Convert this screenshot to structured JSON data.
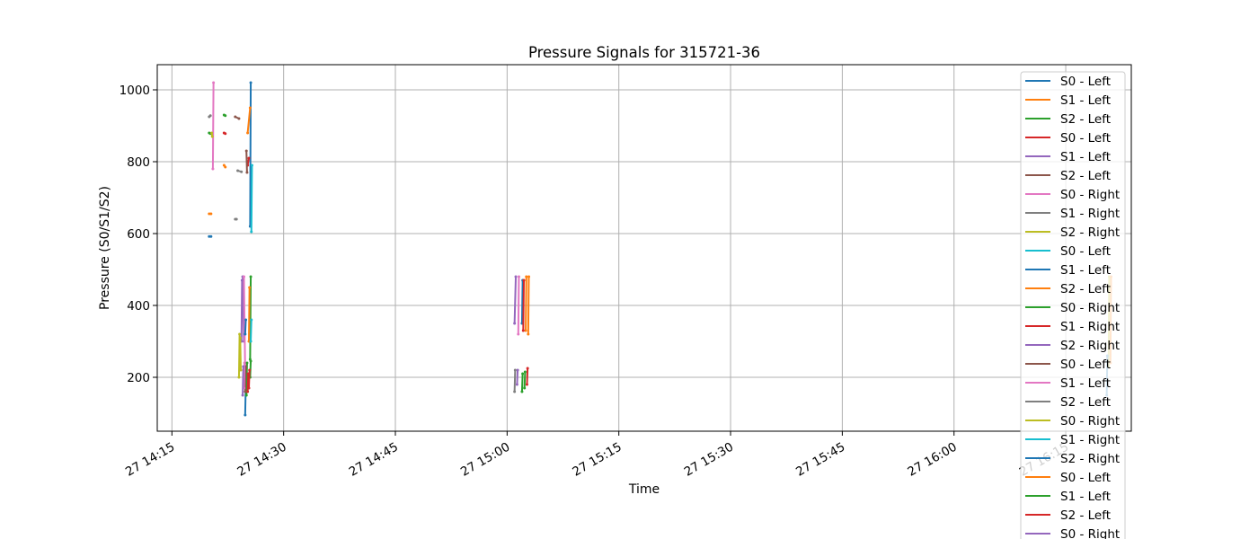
{
  "chart_data": {
    "type": "line",
    "title": "Pressure Signals for 315721-36",
    "xlabel": "Time",
    "ylabel": "Pressure (S0/S1/S2)",
    "grid": true,
    "legend_location": "top-right",
    "xlim": [
      "27 14:14",
      "27 16:23"
    ],
    "ylim": [
      50,
      1070
    ],
    "x_ticks": [
      "27 14:15",
      "27 14:30",
      "27 14:45",
      "27 15:00",
      "27 15:15",
      "27 15:30",
      "27 15:45",
      "27 16:00",
      "27 16:15"
    ],
    "y_ticks": [
      200,
      400,
      600,
      800,
      1000
    ],
    "series": [
      {
        "name": "S0 - Left",
        "color": "#1f77b4",
        "points": [
          [
            "27 14:20:00",
            592
          ],
          [
            "27 14:20:15",
            592
          ],
          [
            "27 14:24:50",
            95
          ],
          [
            "27 14:24:55",
            180
          ],
          [
            "27 14:25:30",
            620
          ],
          [
            "27 14:25:35",
            1020
          ],
          [
            "27 14:25:40",
            360
          ]
        ]
      },
      {
        "name": "S1 - Left",
        "color": "#ff7f0e",
        "points": [
          [
            "27 14:20:00",
            655
          ],
          [
            "27 14:20:15",
            655
          ],
          [
            "27 14:22:00",
            790
          ],
          [
            "27 14:22:10",
            785
          ],
          [
            "27 14:25:10",
            880
          ],
          [
            "27 14:25:30",
            950
          ],
          [
            "27 15:02:30",
            330
          ],
          [
            "27 15:02:35",
            480
          ]
        ]
      },
      {
        "name": "S2 - Left",
        "color": "#2ca02c",
        "points": [
          [
            "27 14:20:00",
            880
          ],
          [
            "27 14:20:10",
            878
          ],
          [
            "27 14:22:00",
            930
          ],
          [
            "27 14:22:10",
            928
          ],
          [
            "27 14:25:30",
            250
          ],
          [
            "27 14:25:35",
            480
          ],
          [
            "27 15:02:00",
            160
          ],
          [
            "27 15:02:05",
            210
          ]
        ]
      },
      {
        "name": "S0 - Left",
        "color": "#d62728",
        "points": [
          [
            "27 14:22:00",
            880
          ],
          [
            "27 14:22:10",
            878
          ],
          [
            "27 14:25:10",
            790
          ],
          [
            "27 14:25:20",
            810
          ],
          [
            "27 15:02:40",
            180
          ],
          [
            "27 15:02:45",
            225
          ]
        ]
      },
      {
        "name": "S1 - Left",
        "color": "#9467bd",
        "points": [
          [
            "27 14:24:30",
            480
          ],
          [
            "27 14:24:40",
            300
          ],
          [
            "27 15:01:00",
            350
          ],
          [
            "27 15:01:10",
            480
          ]
        ]
      },
      {
        "name": "S2 - Left",
        "color": "#8c564b",
        "points": [
          [
            "27 14:23:30",
            925
          ],
          [
            "27 14:24:00",
            920
          ],
          [
            "27 14:25:00",
            830
          ],
          [
            "27 14:25:05",
            770
          ]
        ]
      },
      {
        "name": "S0 - Right",
        "color": "#e377c2",
        "points": [
          [
            "27 14:20:30",
            780
          ],
          [
            "27 14:20:35",
            1020
          ],
          [
            "27 14:24:40",
            480
          ],
          [
            "27 14:24:50",
            220
          ],
          [
            "27 15:01:30",
            320
          ],
          [
            "27 15:01:35",
            480
          ]
        ]
      },
      {
        "name": "S1 - Right",
        "color": "#7f7f7f",
        "points": [
          [
            "27 14:20:00",
            925
          ],
          [
            "27 14:20:10",
            928
          ],
          [
            "27 14:23:30",
            640
          ],
          [
            "27 14:23:40",
            640
          ],
          [
            "27 15:01:00",
            160
          ],
          [
            "27 15:01:05",
            220
          ]
        ]
      },
      {
        "name": "S2 - Right",
        "color": "#bcbd22",
        "points": [
          [
            "27 14:20:20",
            880
          ],
          [
            "27 14:20:25",
            870
          ],
          [
            "27 14:24:00",
            200
          ],
          [
            "27 14:24:05",
            320
          ],
          [
            "27 16:20:45",
            230
          ],
          [
            "27 16:20:50",
            480
          ]
        ]
      },
      {
        "name": "S0 - Left",
        "color": "#17becf",
        "points": [
          [
            "27 14:25:40",
            605
          ],
          [
            "27 14:25:45",
            790
          ]
        ]
      },
      {
        "name": "S1 - Left",
        "color": "#1f77b4",
        "points": [
          [
            "27 14:24:50",
            320
          ],
          [
            "27 14:24:55",
            360
          ],
          [
            "27 15:02:00",
            350
          ],
          [
            "27 15:02:05",
            470
          ]
        ]
      },
      {
        "name": "S2 - Left",
        "color": "#ff7f0e",
        "points": [
          [
            "27 14:25:20",
            300
          ],
          [
            "27 14:25:25",
            450
          ],
          [
            "27 15:02:50",
            320
          ],
          [
            "27 15:02:55",
            480
          ]
        ]
      },
      {
        "name": "S0 - Right",
        "color": "#2ca02c",
        "points": [
          [
            "27 14:25:00",
            150
          ],
          [
            "27 14:25:05",
            240
          ],
          [
            "27 15:02:20",
            170
          ],
          [
            "27 15:02:25",
            215
          ]
        ]
      },
      {
        "name": "S1 - Right",
        "color": "#d62728",
        "points": [
          [
            "27 14:25:10",
            160
          ],
          [
            "27 14:25:15",
            210
          ],
          [
            "27 15:02:10",
            330
          ],
          [
            "27 15:02:15",
            470
          ]
        ]
      },
      {
        "name": "S2 - Right",
        "color": "#9467bd",
        "points": [
          [
            "27 14:24:20",
            300
          ],
          [
            "27 14:24:25",
            470
          ],
          [
            "27 15:01:20",
            180
          ],
          [
            "27 15:01:25",
            220
          ]
        ]
      },
      {
        "name": "S0 - Left",
        "color": "#8c564b",
        "points": [
          [
            "27 14:24:50",
            160
          ],
          [
            "27 14:24:55",
            230
          ]
        ]
      },
      {
        "name": "S1 - Left",
        "color": "#e377c2",
        "points": [
          [
            "27 14:24:40",
            170
          ],
          [
            "27 14:24:45",
            240
          ]
        ]
      },
      {
        "name": "S2 - Left",
        "color": "#7f7f7f",
        "points": [
          [
            "27 14:23:50",
            775
          ],
          [
            "27 14:24:20",
            772
          ]
        ]
      },
      {
        "name": "S0 - Right",
        "color": "#bcbd22",
        "points": [
          [
            "27 14:24:10",
            310
          ],
          [
            "27 14:24:15",
            220
          ]
        ]
      },
      {
        "name": "S1 - Right",
        "color": "#17becf",
        "points": [
          [
            "27 14:25:35",
            300
          ],
          [
            "27 14:25:40",
            360
          ]
        ]
      },
      {
        "name": "S2 - Right",
        "color": "#1f77b4",
        "points": [
          [
            "27 16:20:30",
            150
          ],
          [
            "27 16:20:35",
            260
          ]
        ]
      },
      {
        "name": "S0 - Left",
        "color": "#ff7f0e",
        "points": [
          [
            "27 16:21:00",
            240
          ],
          [
            "27 16:21:05",
            480
          ]
        ]
      },
      {
        "name": "S1 - Left",
        "color": "#2ca02c",
        "points": [
          [
            "27 14:25:30",
            200
          ],
          [
            "27 14:25:35",
            245
          ]
        ]
      },
      {
        "name": "S2 - Left",
        "color": "#d62728",
        "points": [
          [
            "27 14:25:20",
            170
          ],
          [
            "27 14:25:25",
            220
          ]
        ]
      },
      {
        "name": "S0 - Right",
        "color": "#9467bd",
        "points": [
          [
            "27 14:24:30",
            150
          ],
          [
            "27 14:24:35",
            230
          ]
        ]
      }
    ]
  }
}
